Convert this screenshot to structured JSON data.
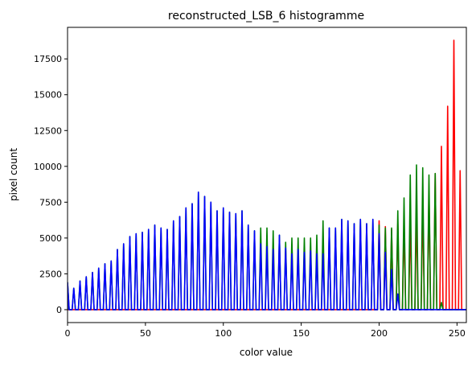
{
  "chart_data": {
    "type": "line",
    "title": "reconstructed_LSB_6 histogramme",
    "xlabel": "color value",
    "ylabel": "pixel count",
    "xlim": [
      0,
      256
    ],
    "ylim": [
      -900,
      19700
    ],
    "xticks": [
      0,
      50,
      100,
      150,
      200,
      250
    ],
    "yticks": [
      0,
      2500,
      5000,
      7500,
      10000,
      12500,
      15000,
      17500
    ],
    "grid": false,
    "legend": "none",
    "bin_spacing": 4,
    "series": [
      {
        "color": "#ff0000",
        "peaks": [
          [
            200,
            6200
          ],
          [
            204,
            5800
          ],
          [
            208,
            5600
          ],
          [
            212,
            6000
          ],
          [
            216,
            6100
          ],
          [
            220,
            6300
          ],
          [
            224,
            6800
          ],
          [
            228,
            7400
          ],
          [
            232,
            8200
          ],
          [
            236,
            9500
          ],
          [
            240,
            11400
          ],
          [
            244,
            14200
          ],
          [
            248,
            18800
          ],
          [
            252,
            9700
          ]
        ]
      },
      {
        "color": "#008000",
        "peaks": [
          [
            0,
            1900
          ],
          [
            4,
            1500
          ],
          [
            8,
            2000
          ],
          [
            12,
            2300
          ],
          [
            16,
            2600
          ],
          [
            20,
            2900
          ],
          [
            24,
            3200
          ],
          [
            28,
            3400
          ],
          [
            32,
            4200
          ],
          [
            36,
            4600
          ],
          [
            40,
            5100
          ],
          [
            44,
            5300
          ],
          [
            48,
            5400
          ],
          [
            52,
            5600
          ],
          [
            56,
            5900
          ],
          [
            60,
            5700
          ],
          [
            64,
            5600
          ],
          [
            68,
            6200
          ],
          [
            72,
            6500
          ],
          [
            76,
            7100
          ],
          [
            80,
            7400
          ],
          [
            84,
            8200
          ],
          [
            88,
            7900
          ],
          [
            92,
            7500
          ],
          [
            96,
            6900
          ],
          [
            100,
            7100
          ],
          [
            104,
            6800
          ],
          [
            108,
            6700
          ],
          [
            112,
            6900
          ],
          [
            116,
            5900
          ],
          [
            120,
            5500
          ],
          [
            124,
            5700
          ],
          [
            128,
            5700
          ],
          [
            132,
            5500
          ],
          [
            136,
            5200
          ],
          [
            140,
            4700
          ],
          [
            144,
            5000
          ],
          [
            148,
            5000
          ],
          [
            152,
            5000
          ],
          [
            156,
            5000
          ],
          [
            160,
            5200
          ],
          [
            164,
            6200
          ],
          [
            168,
            5700
          ],
          [
            172,
            5700
          ],
          [
            176,
            6300
          ],
          [
            180,
            6200
          ],
          [
            184,
            6000
          ],
          [
            188,
            6300
          ],
          [
            192,
            6000
          ],
          [
            196,
            6300
          ],
          [
            200,
            5900
          ],
          [
            204,
            5700
          ],
          [
            208,
            5700
          ],
          [
            212,
            6900
          ],
          [
            216,
            7800
          ],
          [
            220,
            9400
          ],
          [
            224,
            10100
          ],
          [
            228,
            9900
          ],
          [
            232,
            9400
          ],
          [
            236,
            9500
          ],
          [
            240,
            500
          ]
        ]
      },
      {
        "color": "#0000ff",
        "peaks": [
          [
            0,
            1900
          ],
          [
            4,
            1500
          ],
          [
            8,
            2000
          ],
          [
            12,
            2300
          ],
          [
            16,
            2600
          ],
          [
            20,
            2900
          ],
          [
            24,
            3200
          ],
          [
            28,
            3400
          ],
          [
            32,
            4200
          ],
          [
            36,
            4600
          ],
          [
            40,
            5100
          ],
          [
            44,
            5300
          ],
          [
            48,
            5400
          ],
          [
            52,
            5600
          ],
          [
            56,
            5900
          ],
          [
            60,
            5700
          ],
          [
            64,
            5600
          ],
          [
            68,
            6200
          ],
          [
            72,
            6500
          ],
          [
            76,
            7100
          ],
          [
            80,
            7400
          ],
          [
            84,
            8200
          ],
          [
            88,
            7900
          ],
          [
            92,
            7500
          ],
          [
            96,
            6900
          ],
          [
            100,
            7100
          ],
          [
            104,
            6800
          ],
          [
            108,
            6700
          ],
          [
            112,
            6900
          ],
          [
            116,
            5900
          ],
          [
            120,
            5500
          ],
          [
            124,
            4600
          ],
          [
            128,
            4400
          ],
          [
            132,
            4200
          ],
          [
            136,
            5200
          ],
          [
            140,
            4300
          ],
          [
            144,
            3900
          ],
          [
            148,
            4200
          ],
          [
            152,
            4000
          ],
          [
            156,
            4100
          ],
          [
            160,
            3900
          ],
          [
            164,
            3900
          ],
          [
            168,
            5700
          ],
          [
            172,
            5700
          ],
          [
            176,
            6300
          ],
          [
            180,
            6200
          ],
          [
            184,
            6000
          ],
          [
            188,
            6300
          ],
          [
            192,
            6000
          ],
          [
            196,
            6300
          ],
          [
            200,
            5300
          ],
          [
            204,
            4000
          ],
          [
            208,
            2800
          ],
          [
            212,
            1100
          ]
        ]
      }
    ]
  }
}
